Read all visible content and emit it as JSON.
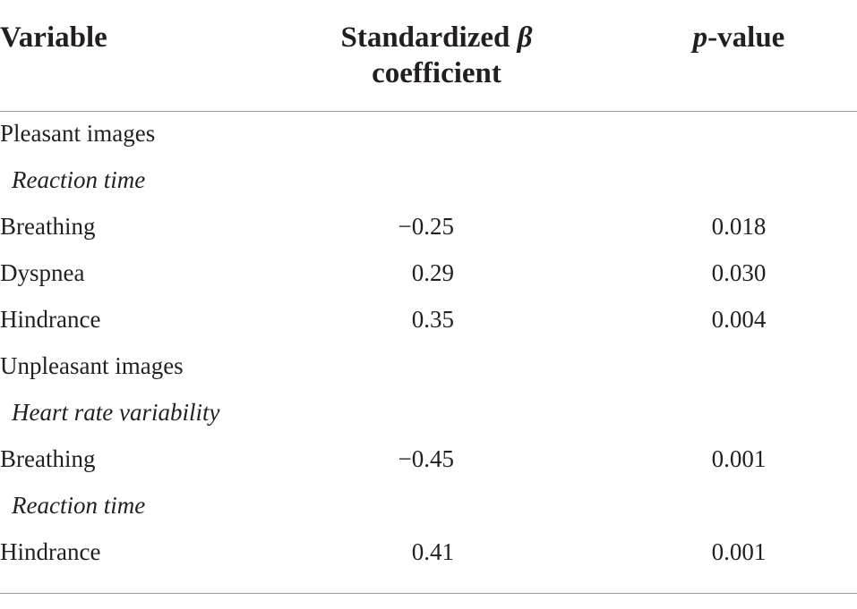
{
  "header": {
    "variable": "Variable",
    "beta_line1": "Standardized ",
    "beta_symbol": "β",
    "beta_line2": "coefficient",
    "p_italic": "p",
    "p_rest": "-value"
  },
  "rows": [
    {
      "label": "Pleasant images",
      "beta": "",
      "p": ""
    },
    {
      "label": "Reaction time",
      "beta": "",
      "p": ""
    },
    {
      "label": "Breathing",
      "beta": "−0.25",
      "p": "0.018"
    },
    {
      "label": "Dyspnea",
      "beta": "0.29",
      "p": "0.030"
    },
    {
      "label": "Hindrance",
      "beta": "0.35",
      "p": "0.004"
    },
    {
      "label": "Unpleasant images",
      "beta": "",
      "p": ""
    },
    {
      "label": "Heart rate variability",
      "beta": "",
      "p": ""
    },
    {
      "label": "Breathing",
      "beta": "−0.45",
      "p": "0.001"
    },
    {
      "label": "Reaction time",
      "beta": "",
      "p": ""
    },
    {
      "label": "Hindrance",
      "beta": "0.41",
      "p": "0.001"
    }
  ]
}
